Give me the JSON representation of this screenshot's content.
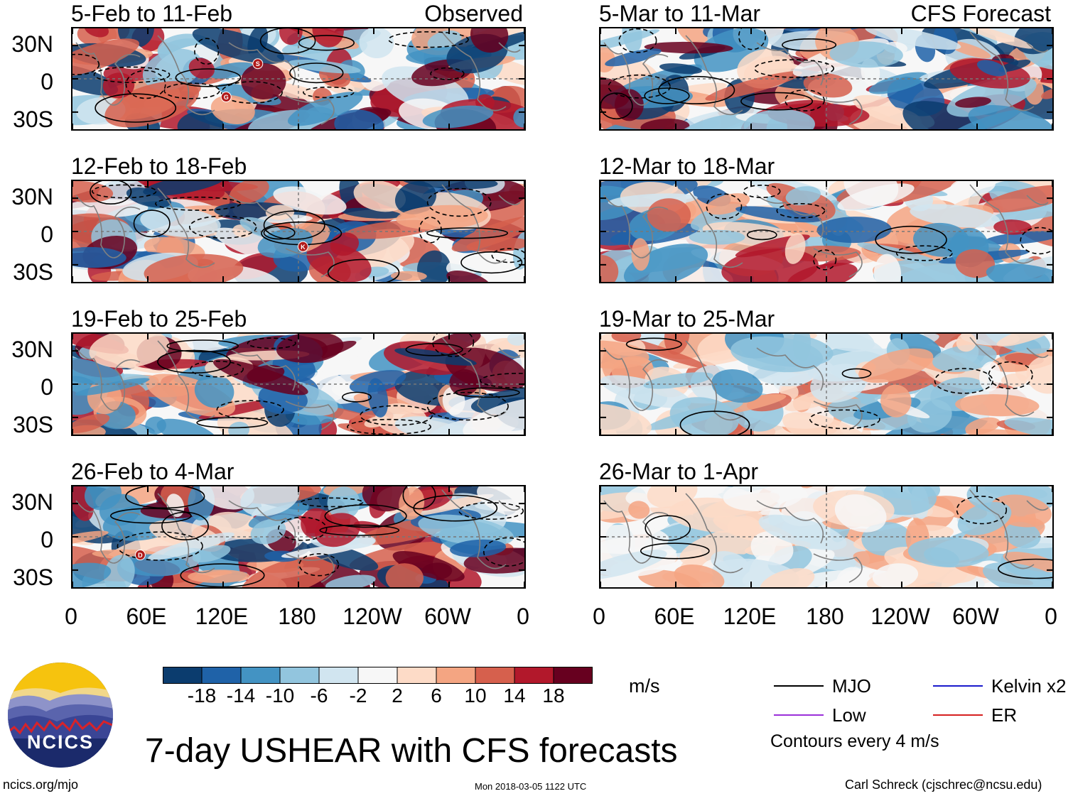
{
  "chart_data": {
    "type": "heatmap",
    "title": "7-day USHEAR with CFS forecasts",
    "columns": [
      {
        "name": "Observed",
        "panels": [
          {
            "period": "5-Feb to 11-Feb",
            "storms": [
              "S",
              "G"
            ]
          },
          {
            "period": "12-Feb to 18-Feb",
            "storms": [
              "K"
            ]
          },
          {
            "period": "19-Feb to 25-Feb",
            "storms": []
          },
          {
            "period": "26-Feb to 4-Mar",
            "storms": [
              "D"
            ]
          }
        ]
      },
      {
        "name": "CFS Forecast",
        "panels": [
          {
            "period": "5-Mar to 11-Mar",
            "storms": []
          },
          {
            "period": "12-Mar to 18-Mar",
            "storms": []
          },
          {
            "period": "19-Mar to 25-Mar",
            "storms": []
          },
          {
            "period": "26-Mar to 1-Apr",
            "storms": []
          }
        ]
      }
    ],
    "lat_ticks": [
      "30N",
      "0",
      "30S"
    ],
    "lat_range": [
      -40,
      40
    ],
    "lon_ticks": [
      "0",
      "60E",
      "120E",
      "180",
      "120W",
      "60W",
      "0"
    ],
    "lon_range": [
      0,
      360
    ],
    "colorbar": {
      "unit": "m/s",
      "ticks": [
        "-18",
        "-14",
        "-10",
        "-6",
        "-2",
        "2",
        "6",
        "10",
        "14",
        "18"
      ],
      "colors": [
        "#0b3c6e",
        "#1f62a8",
        "#4393c3",
        "#92c5de",
        "#d1e5f0",
        "#f7f7f7",
        "#fddbc7",
        "#f4a582",
        "#d6604d",
        "#b2182b",
        "#67001f"
      ]
    },
    "legend": [
      {
        "label": "MJO",
        "color": "#000000"
      },
      {
        "label": "Kelvin x2",
        "color": "#1a1acc"
      },
      {
        "label": "Low",
        "color": "#9b30d9"
      },
      {
        "label": "ER",
        "color": "#d62020"
      }
    ],
    "contour_note": "Contours every 4 m/s"
  },
  "footer": {
    "site": "ncics.org/mjo",
    "timestamp": "Mon 2018-03-05 1122 UTC",
    "author": "Carl Schreck (cjschrec@ncsu.edu)",
    "logo_text": "NCICS"
  }
}
